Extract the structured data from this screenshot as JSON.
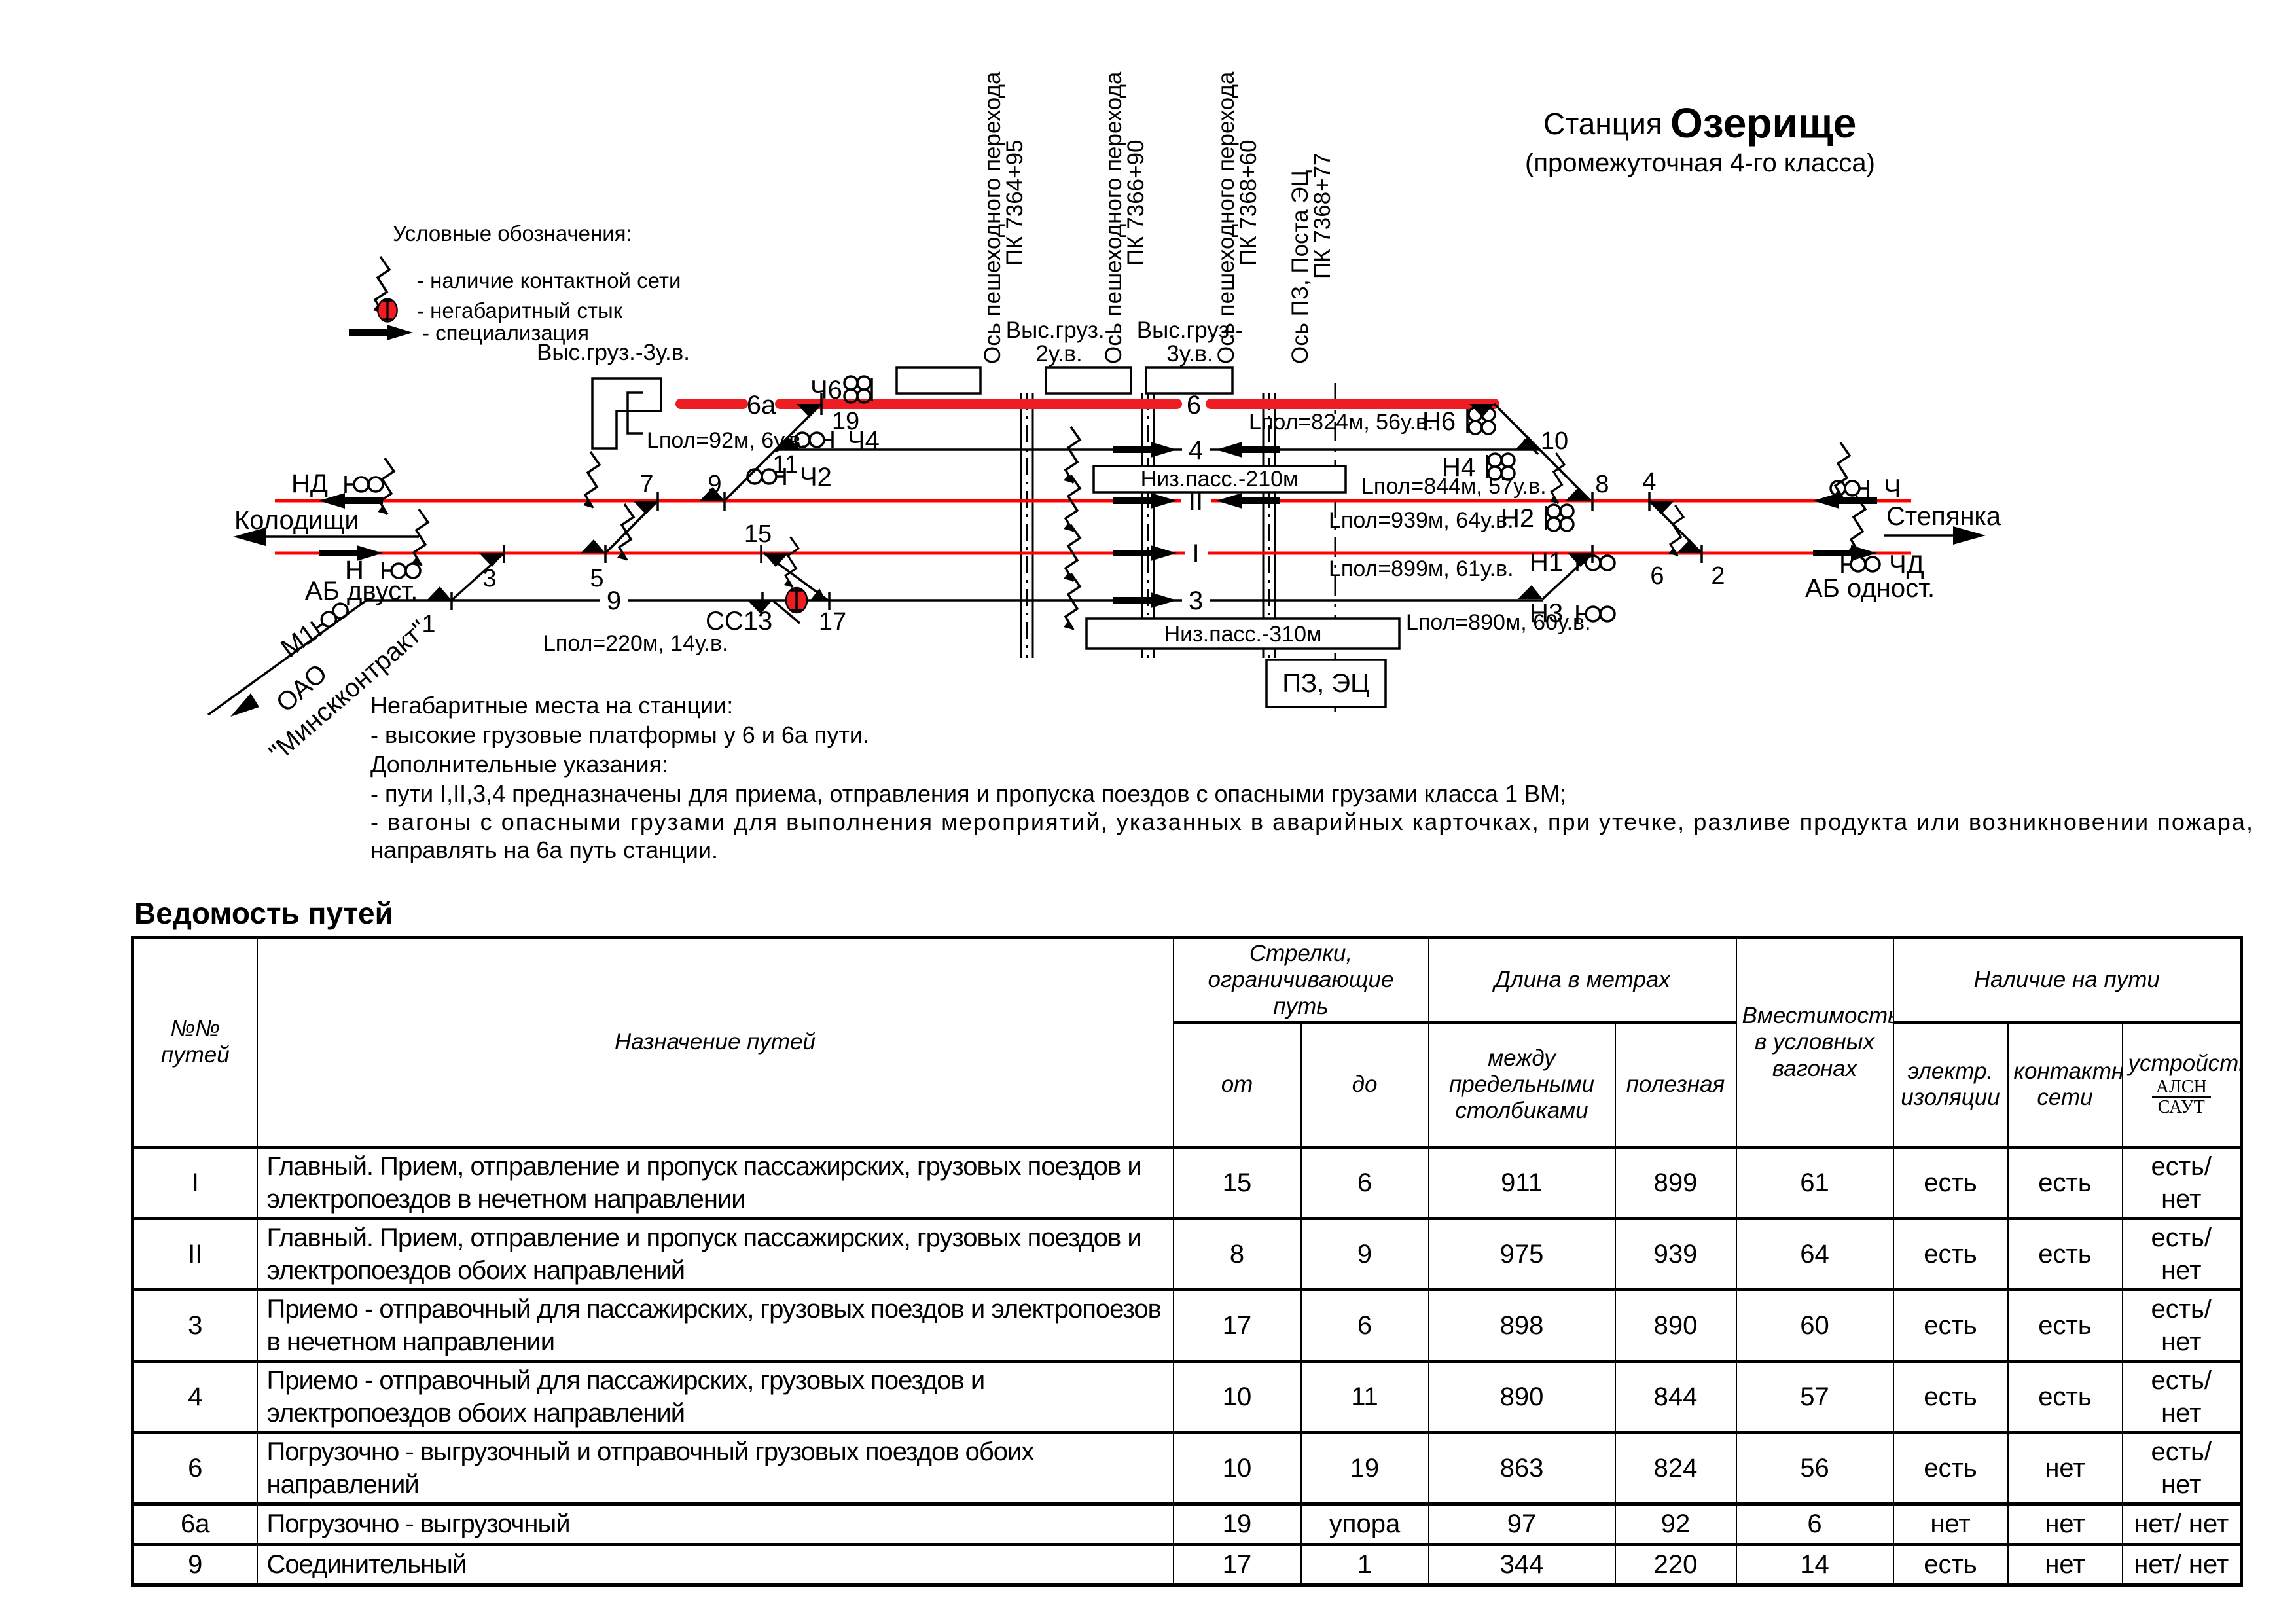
{
  "station": {
    "prefix": "Станция",
    "name": "Озерище",
    "subtitle": "(промежуточная 4-го класса)"
  },
  "legend": {
    "title": "Условные обозначения:",
    "contact": "- наличие  контактной сети",
    "joint": "- негабаритный стык",
    "spec": "- специализация"
  },
  "axes": {
    "a1": {
      "l1": "Ось пешеходного перехода",
      "l2": "ПК 7364+95"
    },
    "a2": {
      "l1": "Ось пешеходного перехода",
      "l2": "ПК 7366+90"
    },
    "a3": {
      "l1": "Ось пешеходного перехода",
      "l2": "ПК 7368+60"
    },
    "a4": {
      "l1": "Ось ПЗ, Поста ЭЦ",
      "l2": "ПК 7368+77"
    }
  },
  "platforms": {
    "high_left": "Выс.груз.-3у.в.",
    "high_mid1_l1": "Выс.груз.-",
    "high_mid1_l2": "2у.в.",
    "high_mid2_l1": "Выс.груз.-",
    "high_mid2_l2": "3у.в.",
    "low1": "Низ.пасс.-210м",
    "low2": "Низ.пасс.-310м",
    "post": "ПЗ, ЭЦ"
  },
  "directions": {
    "left": "Колодищи",
    "right": "Степянка",
    "spur_owner1": "ОАО",
    "spur_owner2": "\"Минскконтракт\"",
    "ab_left": "АБ двуст.",
    "ab_right": "АБ одност."
  },
  "signals": {
    "nd": "НД",
    "n": "Н",
    "m1": "М1",
    "ch": "Ч",
    "chd": "ЧД",
    "ch2": "Ч2",
    "ch4": "Ч4",
    "ch6": "Ч6",
    "n1": "Н1",
    "n2": "Н2",
    "n3": "Н3",
    "n4": "Н4",
    "n6": "Н6",
    "ss13": "СС13"
  },
  "tracks": {
    "t6a": "6а",
    "t6": "6",
    "t4": "4",
    "tII": "II",
    "tI": "I",
    "t3": "3",
    "t9": "9"
  },
  "lpol": {
    "t6a": "Lпол=92м, 6у.в.",
    "t6": "Lпол=824м, 56у.в.",
    "t4": "Lпол=844м, 57у.в.",
    "tII": "Lпол=939м, 64у.в.",
    "tI": "Lпол=899м, 61у.в.",
    "t3": "Lпол=890м, 60у.в.",
    "t9": "Lпол=220м, 14у.в."
  },
  "switches": {
    "s1": "1",
    "s2": "2",
    "s3": "3",
    "s4": "4",
    "s5": "5",
    "s6": "6",
    "s7": "7",
    "s8": "8",
    "s9": "9",
    "s10": "10",
    "s11": "11",
    "s15": "15",
    "s17": "17",
    "s19": "19"
  },
  "notes": {
    "l1": "Негабаритные места на станции:",
    "l2": "- высокие грузовые платформы у 6 и 6а пути.",
    "l3": "Дополнительные указания:",
    "l4": "- пути I,II,3,4 предназначены для приема, отправления и пропуска поездов с опасными грузами класса 1 ВМ;",
    "l5": "- вагоны с опасными грузами для выполнения мероприятий, указанных в аварийных карточках, при утечке, разливе продукта или возникновении пожара,",
    "l6": "направлять на 6а путь станции."
  },
  "table": {
    "title": "Ведомость путей",
    "headers": {
      "num1": "№№",
      "num2": "путей",
      "purpose": "Назначение путей",
      "switches": "Стрелки, ограничивающие путь",
      "from": "от",
      "to": "до",
      "length": "Длина в метрах",
      "between": "между предельными столбиками",
      "useful": "полезная",
      "capacity": "Вместимость в условных вагонах",
      "presence": "Наличие на пути",
      "el": "электр. изоляции",
      "contact": "контактной сети",
      "devices": "устройств",
      "alsn": "АЛСН",
      "saut": "САУТ"
    },
    "rows": [
      {
        "num": "I",
        "purpose": "Главный. Прием, отправление и пропуск пассажирских, грузовых поездов и электропоездов в нечетном направлении",
        "from": "15",
        "to": "6",
        "between": "911",
        "useful": "899",
        "capacity": "61",
        "el": "есть",
        "contact": "есть",
        "devices": "есть/ нет"
      },
      {
        "num": "II",
        "purpose": "Главный. Прием, отправление и пропуск пассажирских, грузовых поездов и электропоездов обоих направлений",
        "from": "8",
        "to": "9",
        "between": "975",
        "useful": "939",
        "capacity": "64",
        "el": "есть",
        "contact": "есть",
        "devices": "есть/ нет"
      },
      {
        "num": "3",
        "purpose": "Приемо - отправочный для пассажирских, грузовых поездов и электропоезов в нечетном направлении",
        "from": "17",
        "to": "6",
        "between": "898",
        "useful": "890",
        "capacity": "60",
        "el": "есть",
        "contact": "есть",
        "devices": "есть/ нет"
      },
      {
        "num": "4",
        "purpose": "Приемо - отправочный для пассажирских, грузовых поездов и электропоездов обоих направлений",
        "from": "10",
        "to": "11",
        "between": "890",
        "useful": "844",
        "capacity": "57",
        "el": "есть",
        "contact": "есть",
        "devices": "есть/ нет"
      },
      {
        "num": "6",
        "purpose": "Погрузочно - выгрузочный и отправочный грузовых поездов обоих направлений",
        "from": "10",
        "to": "19",
        "between": "863",
        "useful": "824",
        "capacity": "56",
        "el": "есть",
        "contact": "нет",
        "devices": "есть/ нет"
      },
      {
        "num": "6а",
        "purpose": "Погрузочно - выгрузочный",
        "from": "19",
        "to": "упора",
        "between": "97",
        "useful": "92",
        "capacity": "6",
        "el": "нет",
        "contact": "нет",
        "devices": "нет/ нет"
      },
      {
        "num": "9",
        "purpose": "Соединительный",
        "from": "17",
        "to": "1",
        "between": "344",
        "useful": "220",
        "capacity": "14",
        "el": "есть",
        "contact": "нет",
        "devices": "нет/ нет"
      }
    ]
  }
}
